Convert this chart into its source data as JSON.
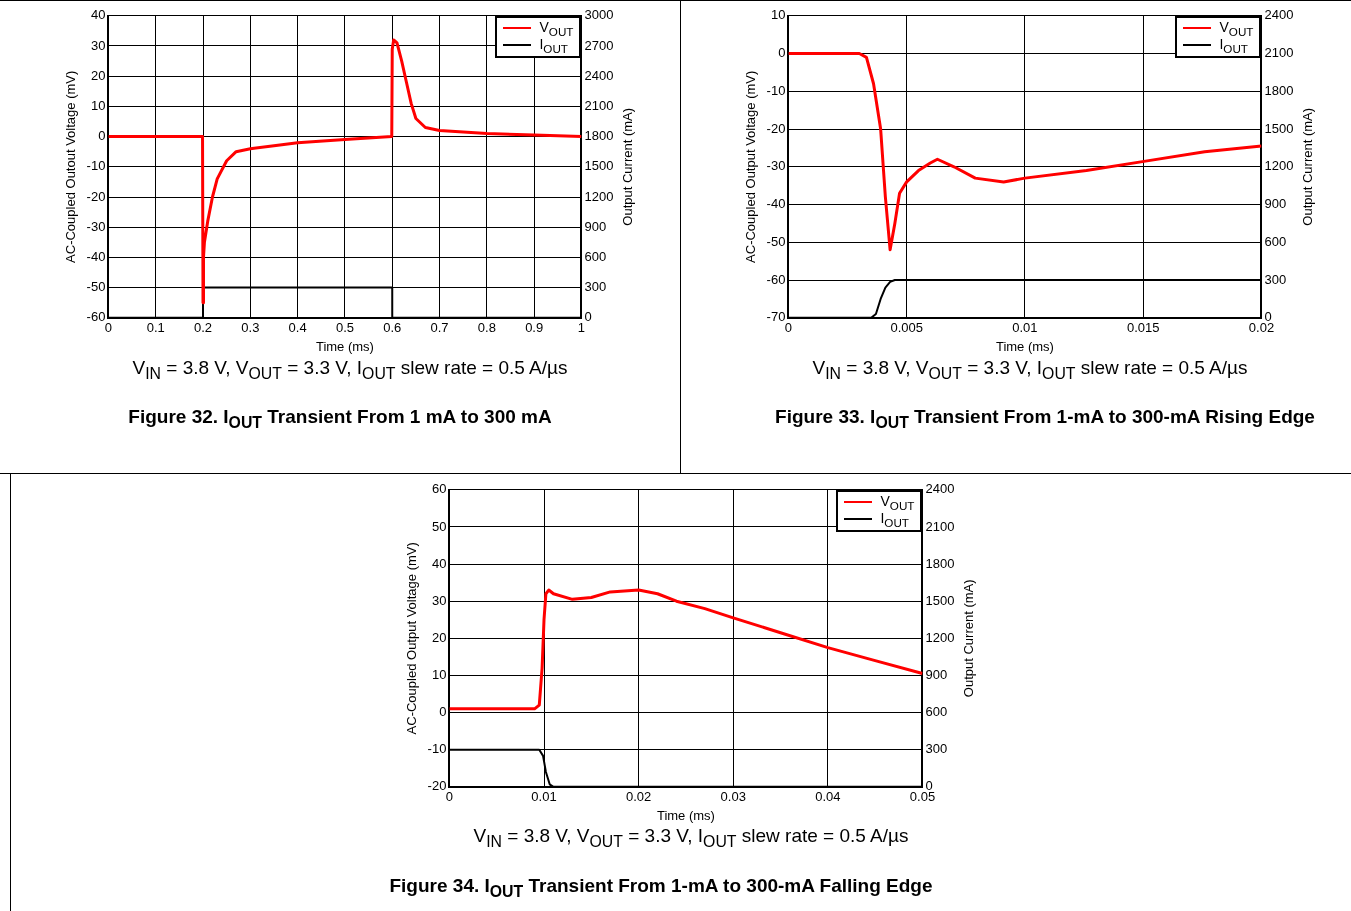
{
  "chart_data": [
    {
      "type": "line",
      "title": "Figure 32. I$_{OUT}$ Transient From 1 mA to 300 mA",
      "subtitle": "V$_{IN}$ = 3.8 V, V$_{OUT}$ = 3.3 V, I$_{OUT}$ slew rate = 0.5 A/µs",
      "xlabel": "Time (ms)",
      "ylabel": "AC-Coupled Outout Voltage (mV)",
      "y2label": "Output Current (mA)",
      "xlim": [
        0,
        1
      ],
      "xticks": [
        0,
        0.1,
        0.2,
        0.3,
        0.4,
        0.5,
        0.6,
        0.7,
        0.8,
        0.9,
        1
      ],
      "ylim": [
        -60,
        40
      ],
      "yticks": [
        -60,
        -50,
        -40,
        -30,
        -20,
        -10,
        0,
        10,
        20,
        30,
        40
      ],
      "y2lim": [
        0,
        3000
      ],
      "y2ticks": [
        0,
        300,
        600,
        900,
        1200,
        1500,
        1800,
        2100,
        2400,
        2700,
        3000
      ],
      "grid": true,
      "legend": "top right",
      "series": [
        {
          "name": "V$_{OUT}$",
          "color": "#ff0000",
          "x": [
            0,
            0.05,
            0.1,
            0.15,
            0.199,
            0.2,
            0.201,
            0.203,
            0.21,
            0.22,
            0.23,
            0.25,
            0.27,
            0.3,
            0.35,
            0.4,
            0.5,
            0.599,
            0.6,
            0.603,
            0.61,
            0.62,
            0.63,
            0.64,
            0.65,
            0.67,
            0.7,
            0.8,
            0.9,
            1
          ],
          "values": [
            0,
            0,
            0,
            0,
            0,
            -55,
            -40,
            -35,
            -28,
            -20,
            -14,
            -8,
            -5,
            -4,
            -3,
            -2,
            -1,
            0,
            29,
            32,
            31,
            25,
            18,
            11,
            6,
            3,
            2,
            1,
            0.5,
            0
          ]
        },
        {
          "name": "I$_{OUT}$",
          "color": "#000000",
          "axis": "y2",
          "x": [
            0,
            0.2,
            0.2,
            0.6,
            0.6,
            1
          ],
          "values": [
            0,
            0,
            300,
            300,
            0,
            0
          ]
        }
      ]
    },
    {
      "type": "line",
      "title": "Figure 33. I$_{OUT}$ Transient From 1-mA to 300-mA Rising Edge",
      "subtitle": "V$_{IN}$ = 3.8 V, V$_{OUT}$ = 3.3 V, I$_{OUT}$ slew rate = 0.5 A/µs",
      "xlabel": "Time (ms)",
      "ylabel": "AC-Coupled Output Voltage (mV)",
      "y2label": "Output Current (mA)",
      "xlim": [
        0,
        0.02
      ],
      "xticks": [
        0,
        0.005,
        0.01,
        0.015,
        0.02
      ],
      "ylim": [
        -70,
        10
      ],
      "yticks": [
        -70,
        -60,
        -50,
        -40,
        -30,
        -20,
        -10,
        0,
        10
      ],
      "y2lim": [
        0,
        2400
      ],
      "y2ticks": [
        0,
        300,
        600,
        900,
        1200,
        1500,
        1800,
        2100,
        2400
      ],
      "grid": true,
      "legend": "top right",
      "series": [
        {
          "name": "V$_{OUT}$",
          "color": "#ff0000",
          "x": [
            0,
            0.001,
            0.002,
            0.003,
            0.0033,
            0.0036,
            0.0039,
            0.0041,
            0.0043,
            0.0045,
            0.0047,
            0.005,
            0.0055,
            0.006,
            0.0063,
            0.007,
            0.0079,
            0.0091,
            0.01,
            0.0126,
            0.0151,
            0.0176,
            0.02
          ],
          "values": [
            0,
            0,
            0,
            0,
            -1,
            -8,
            -20,
            -38,
            -52,
            -45,
            -37,
            -34,
            -31,
            -29,
            -28,
            -30,
            -33,
            -34,
            -33,
            -31,
            -28.5,
            -26,
            -24.5
          ]
        },
        {
          "name": "I$_{OUT}$",
          "color": "#000000",
          "axis": "y2",
          "x": [
            0,
            0.0035,
            0.0037,
            0.0039,
            0.0041,
            0.0043,
            0.0045,
            0.01,
            0.02
          ],
          "values": [
            0,
            0,
            30,
            150,
            240,
            285,
            300,
            300,
            300
          ]
        }
      ]
    },
    {
      "type": "line",
      "title": "Figure 34. I$_{OUT}$ Transient From 1-mA to 300-mA Falling Edge",
      "subtitle": "V$_{IN}$ = 3.8 V, V$_{OUT}$ = 3.3 V, I$_{OUT}$ slew rate = 0.5 A/µs",
      "xlabel": "Time (ms)",
      "ylabel": "AC-Coupled Output Voltage (mV)",
      "y2label": "Output Current (mA)",
      "xlim": [
        0,
        0.05
      ],
      "xticks": [
        0,
        0.01,
        0.02,
        0.03,
        0.04,
        0.05
      ],
      "ylim": [
        -20,
        60
      ],
      "yticks": [
        -20,
        -10,
        0,
        10,
        20,
        30,
        40,
        50,
        60
      ],
      "y2lim": [
        0,
        2400
      ],
      "y2ticks": [
        0,
        300,
        600,
        900,
        1200,
        1500,
        1800,
        2100,
        2400
      ],
      "grid": true,
      "legend": "top right",
      "series": [
        {
          "name": "V$_{OUT}$",
          "color": "#ff0000",
          "x": [
            0,
            0.005,
            0.009,
            0.0095,
            0.0098,
            0.01,
            0.0102,
            0.0105,
            0.011,
            0.013,
            0.015,
            0.017,
            0.02,
            0.022,
            0.024,
            0.027,
            0.03,
            0.035,
            0.04,
            0.045,
            0.05
          ],
          "values": [
            1,
            1,
            1,
            2,
            12,
            25,
            32,
            33,
            32,
            30.5,
            31,
            32.5,
            33,
            32,
            30,
            28,
            25.5,
            21.5,
            17.5,
            14,
            10.5
          ]
        },
        {
          "name": "I$_{OUT}$",
          "color": "#000000",
          "axis": "y2",
          "x": [
            0,
            0.005,
            0.0095,
            0.0099,
            0.0102,
            0.0106,
            0.011,
            0.03,
            0.05
          ],
          "values": [
            300,
            300,
            300,
            250,
            120,
            20,
            0,
            0,
            0
          ]
        }
      ]
    }
  ]
}
